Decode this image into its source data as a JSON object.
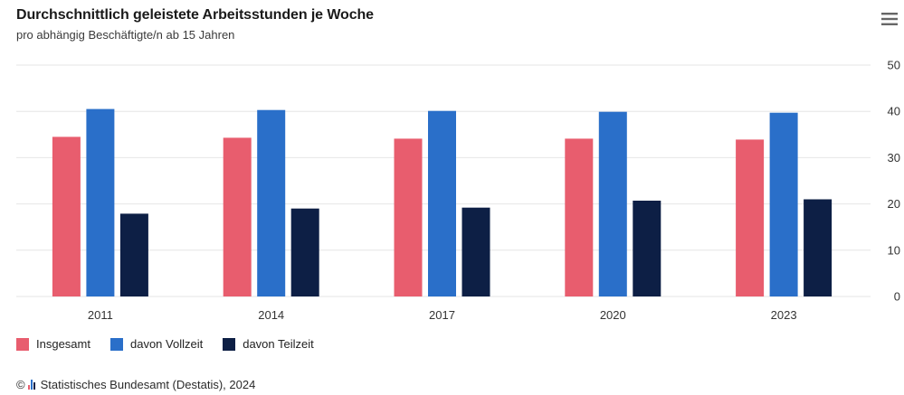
{
  "header": {
    "title": "Durchschnittlich geleistete Arbeitsstunden je Woche",
    "subtitle": "pro abhängig Beschäftigte/n ab 15 Jahren"
  },
  "menu": {
    "icon": "hamburger-menu-icon"
  },
  "colors": {
    "insgesamt": "#e85d6e",
    "vollzeit": "#2a6fc9",
    "teilzeit": "#0d1f45",
    "grid": "#e6e6e6",
    "axis_text": "#333333"
  },
  "chart_data": {
    "type": "bar",
    "categories": [
      "2011",
      "2014",
      "2017",
      "2020",
      "2023"
    ],
    "series": [
      {
        "name": "Insgesamt",
        "values": [
          34.5,
          34.3,
          34.1,
          34.1,
          33.9
        ]
      },
      {
        "name": "davon Vollzeit",
        "values": [
          40.5,
          40.3,
          40.1,
          39.9,
          39.7
        ]
      },
      {
        "name": "davon Teilzeit",
        "values": [
          17.9,
          19.0,
          19.2,
          20.7,
          21.0
        ]
      }
    ],
    "ylim": [
      0,
      50
    ],
    "yticks": [
      "0",
      "10",
      "20",
      "30",
      "40",
      "50"
    ],
    "yaxis_side": "right",
    "grid": true,
    "legend_position": "bottom-left"
  },
  "legend": [
    {
      "label": "Insgesamt"
    },
    {
      "label": "davon Vollzeit"
    },
    {
      "label": "davon Teilzeit"
    }
  ],
  "footer": {
    "copyright": "©",
    "source": "Statistisches Bundesamt (Destatis), 2024"
  }
}
